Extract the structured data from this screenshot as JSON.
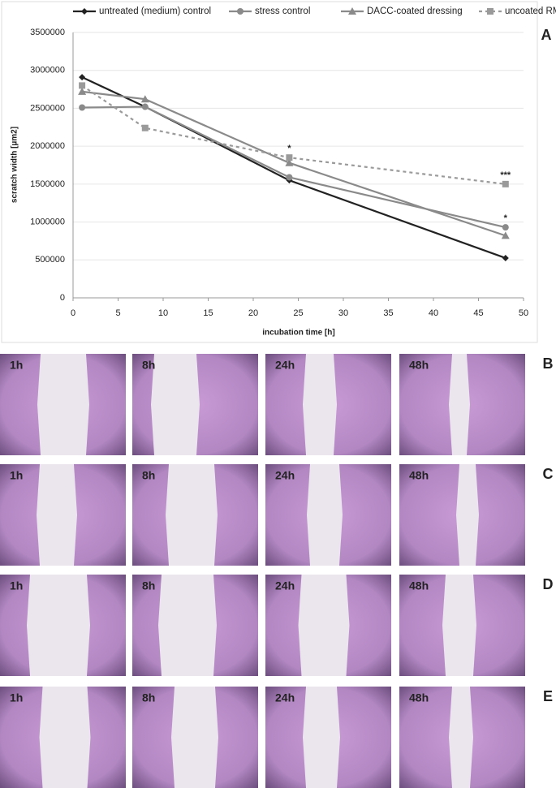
{
  "chart_data": {
    "type": "line",
    "panel_label": "A",
    "xlabel": "incubation time [h]",
    "ylabel": "scratch width [µm2]",
    "x": [
      1,
      8,
      24,
      48
    ],
    "series": [
      {
        "name": "untreated (medium) control",
        "color": "#222222",
        "marker": "diamond",
        "dashed": false,
        "values": [
          2910000,
          2520000,
          1550000,
          525000
        ]
      },
      {
        "name": "stress control",
        "color": "#8a8a8a",
        "marker": "circle",
        "dashed": false,
        "values": [
          2510000,
          2520000,
          1590000,
          930000
        ]
      },
      {
        "name": "DACC-coated dressing",
        "color": "#8a8a8a",
        "marker": "triangle",
        "dashed": false,
        "values": [
          2720000,
          2620000,
          1780000,
          820000
        ]
      },
      {
        "name": "uncoated RM",
        "color": "#9a9a9a",
        "marker": "square",
        "dashed": true,
        "values": [
          2800000,
          2240000,
          1850000,
          1500000
        ]
      }
    ],
    "annotations": [
      {
        "text": "*",
        "x": 24,
        "y": 1850000
      },
      {
        "text": "***",
        "x": 48,
        "y": 1500000
      },
      {
        "text": "*",
        "x": 48,
        "y": 930000
      }
    ],
    "xlim": [
      0,
      50
    ],
    "xticks": [
      0,
      5,
      10,
      15,
      20,
      25,
      30,
      35,
      40,
      45,
      50
    ],
    "ylim": [
      0,
      3500000
    ],
    "yticks": [
      0,
      500000,
      1000000,
      1500000,
      2000000,
      2500000,
      3000000,
      3500000
    ],
    "grid": true
  },
  "panels": [
    {
      "label": "B",
      "images": [
        "1h",
        "8h",
        "24h",
        "48h"
      ]
    },
    {
      "label": "C",
      "images": [
        "1h",
        "8h",
        "24h",
        "48h"
      ]
    },
    {
      "label": "D",
      "images": [
        "1h",
        "8h",
        "24h",
        "48h"
      ]
    },
    {
      "label": "E",
      "images": [
        "1h",
        "8h",
        "24h",
        "48h"
      ]
    }
  ]
}
